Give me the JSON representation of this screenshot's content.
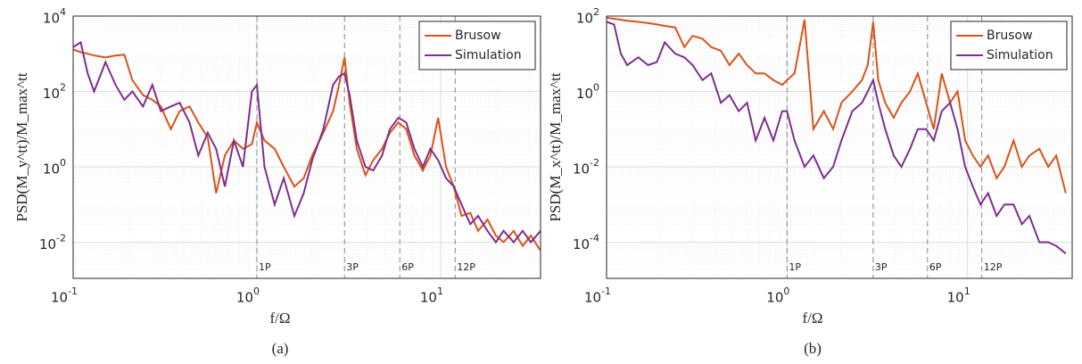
{
  "chart_data": [
    {
      "type": "line",
      "caption": "(a)",
      "xlabel": "f/Ω",
      "ylabel": "PSD(M_y^tt)/M_max^tt",
      "xscale": "log",
      "yscale": "log",
      "grid": true,
      "legend": "northeast",
      "xlim": [
        0.1,
        35
      ],
      "ylim": [
        0.0011,
        10000
      ],
      "xticks": [
        {
          "value": 0.1,
          "label": "10^-1"
        },
        {
          "value": 1,
          "label": "10^0"
        },
        {
          "value": 10,
          "label": "10^1"
        }
      ],
      "yticks": [
        {
          "value": 0.01,
          "label": "10^-2"
        },
        {
          "value": 1,
          "label": "10^0"
        },
        {
          "value": 100,
          "label": "10^2"
        },
        {
          "value": 10000,
          "label": "10^4"
        }
      ],
      "markers": [
        {
          "x": 1,
          "label": "1P"
        },
        {
          "x": 3,
          "label": "3P"
        },
        {
          "x": 6,
          "label": "6P"
        },
        {
          "x": 12,
          "label": "12P"
        }
      ],
      "x": [
        0.1,
        0.11,
        0.12,
        0.13,
        0.15,
        0.17,
        0.19,
        0.21,
        0.24,
        0.27,
        0.3,
        0.34,
        0.38,
        0.43,
        0.48,
        0.54,
        0.6,
        0.67,
        0.75,
        0.84,
        0.94,
        1.0,
        1.1,
        1.25,
        1.4,
        1.6,
        1.8,
        2.0,
        2.3,
        2.6,
        2.8,
        3.0,
        3.2,
        3.5,
        3.9,
        4.3,
        4.8,
        5.3,
        5.9,
        6.5,
        7.2,
        8.0,
        8.8,
        9.7,
        10.7,
        11.8,
        13,
        14.5,
        16,
        18,
        20,
        22,
        25,
        28,
        31,
        35
      ],
      "series": [
        {
          "name": "Brusow",
          "color": "#d95319",
          "values": [
            1300,
            1100,
            1000,
            900,
            800,
            900,
            950,
            200,
            80,
            60,
            40,
            10,
            30,
            40,
            15,
            6,
            0.2,
            2,
            5,
            3,
            4,
            15,
            5,
            3,
            1,
            0.3,
            0.5,
            2,
            8,
            30,
            150,
            800,
            50,
            3,
            0.6,
            1.5,
            3,
            8,
            15,
            10,
            2,
            0.8,
            2,
            20,
            1,
            0.3,
            0.05,
            0.06,
            0.02,
            0.04,
            0.015,
            0.01,
            0.02,
            0.008,
            0.015,
            0.006
          ]
        },
        {
          "name": "Simulation",
          "color": "#7e2f8e",
          "values": [
            1500,
            2000,
            300,
            100,
            600,
            150,
            60,
            100,
            40,
            150,
            30,
            40,
            50,
            15,
            2,
            8,
            3,
            0.3,
            5,
            1,
            100,
            150,
            1,
            0.1,
            0.5,
            0.05,
            0.2,
            1.5,
            10,
            150,
            250,
            300,
            80,
            5,
            1,
            0.8,
            2,
            10,
            20,
            15,
            3,
            1,
            3,
            1.5,
            0.5,
            0.3,
            0.1,
            0.03,
            0.05,
            0.02,
            0.01,
            0.02,
            0.01,
            0.02,
            0.01,
            0.02
          ]
        }
      ]
    },
    {
      "type": "line",
      "caption": "(b)",
      "xlabel": "f/Ω",
      "ylabel": "PSD(M_x^tt)/M_max^tt",
      "xscale": "log",
      "yscale": "log",
      "grid": true,
      "legend": "northeast",
      "xlim": [
        0.1,
        38
      ],
      "ylim": [
        1.1e-05,
        100
      ],
      "xticks": [
        {
          "value": 0.1,
          "label": "10^-1"
        },
        {
          "value": 1,
          "label": "10^0"
        },
        {
          "value": 10,
          "label": "10^1"
        }
      ],
      "yticks": [
        {
          "value": 0.0001,
          "label": "10^-4"
        },
        {
          "value": 0.01,
          "label": "10^-2"
        },
        {
          "value": 1,
          "label": "10^0"
        },
        {
          "value": 100,
          "label": "10^2"
        }
      ],
      "markers": [
        {
          "x": 1,
          "label": "1P"
        },
        {
          "x": 3,
          "label": "3P"
        },
        {
          "x": 6,
          "label": "6P"
        },
        {
          "x": 12,
          "label": "12P"
        }
      ],
      "x": [
        0.1,
        0.11,
        0.12,
        0.13,
        0.15,
        0.17,
        0.19,
        0.21,
        0.24,
        0.27,
        0.3,
        0.34,
        0.38,
        0.43,
        0.48,
        0.54,
        0.6,
        0.67,
        0.75,
        0.84,
        0.94,
        1.0,
        1.1,
        1.25,
        1.4,
        1.6,
        1.8,
        2.0,
        2.3,
        2.6,
        2.8,
        3.0,
        3.2,
        3.5,
        3.9,
        4.3,
        4.8,
        5.3,
        5.9,
        6.5,
        7.2,
        8.0,
        8.8,
        9.7,
        10.7,
        11.8,
        13,
        14.5,
        16,
        18,
        20,
        22,
        25,
        28,
        31,
        35
      ],
      "series": [
        {
          "name": "Brusow",
          "color": "#d95319",
          "values": [
            90,
            85,
            80,
            75,
            70,
            65,
            60,
            55,
            50,
            15,
            30,
            25,
            15,
            12,
            5,
            10,
            5,
            3,
            3,
            2,
            1.5,
            2,
            3,
            80,
            0.1,
            0.3,
            0.1,
            0.5,
            1,
            2,
            5,
            70,
            2,
            0.5,
            0.2,
            0.5,
            1,
            3,
            0.5,
            0.1,
            3,
            0.5,
            1,
            0.05,
            0.02,
            0.01,
            0.02,
            0.005,
            0.01,
            0.05,
            0.01,
            0.02,
            0.03,
            0.01,
            0.02,
            0.002
          ]
        },
        {
          "name": "Simulation",
          "color": "#7e2f8e",
          "values": [
            70,
            60,
            10,
            5,
            8,
            5,
            6,
            20,
            10,
            8,
            5,
            2,
            3,
            0.5,
            0.8,
            0.3,
            0.5,
            0.05,
            0.2,
            0.05,
            0.3,
            0.3,
            0.05,
            0.01,
            0.02,
            0.005,
            0.01,
            0.05,
            0.3,
            0.5,
            1,
            2,
            0.5,
            0.1,
            0.02,
            0.01,
            0.03,
            0.1,
            0.1,
            0.05,
            0.3,
            0.5,
            0.1,
            0.01,
            0.003,
            0.001,
            0.002,
            0.0005,
            0.001,
            0.001,
            0.0003,
            0.0005,
            0.0001,
            0.0001,
            8e-05,
            5e-05
          ]
        }
      ]
    }
  ]
}
